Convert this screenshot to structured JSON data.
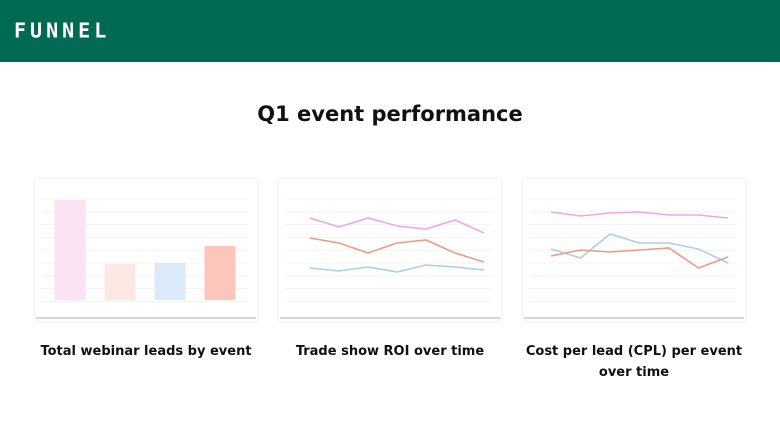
{
  "header": {
    "logo": "FUNNEL"
  },
  "title": "Q1 event performance",
  "cards": [
    {
      "caption": "Total webinar leads by event",
      "chart": {
        "type": "bar",
        "ylim": [
          0,
          100
        ],
        "values": [
          100,
          36,
          37,
          54
        ],
        "colors": [
          "#fbe2f4",
          "#fde8e4",
          "#dbeafb",
          "#fcc6bd"
        ]
      }
    },
    {
      "caption": "Trade show ROI over time",
      "chart": {
        "type": "line",
        "ylim": [
          0,
          100
        ],
        "series": [
          {
            "color": "#f4a6e4",
            "values": [
              82,
              73,
              82,
              74,
              71,
              80,
              67
            ]
          },
          {
            "color": "#f09a82",
            "values": [
              62,
              57,
              47,
              57,
              60,
              47,
              38
            ]
          },
          {
            "color": "#a9cdf0",
            "values": [
              32,
              29,
              33,
              28,
              35,
              33,
              30
            ]
          }
        ]
      }
    },
    {
      "caption": "Cost per lead (CPL) per event over time",
      "chart": {
        "type": "line",
        "ylim": [
          0,
          100
        ],
        "series": [
          {
            "color": "#f4a6e4",
            "values": [
              88,
              84,
              87,
              88,
              85,
              85,
              82
            ]
          },
          {
            "color": "#a9cdf0",
            "values": [
              51,
              42,
              66,
              57,
              57,
              51,
              37
            ]
          },
          {
            "color": "#f09a82",
            "values": [
              44,
              50,
              48,
              50,
              52,
              32,
              43
            ]
          }
        ]
      }
    }
  ]
}
